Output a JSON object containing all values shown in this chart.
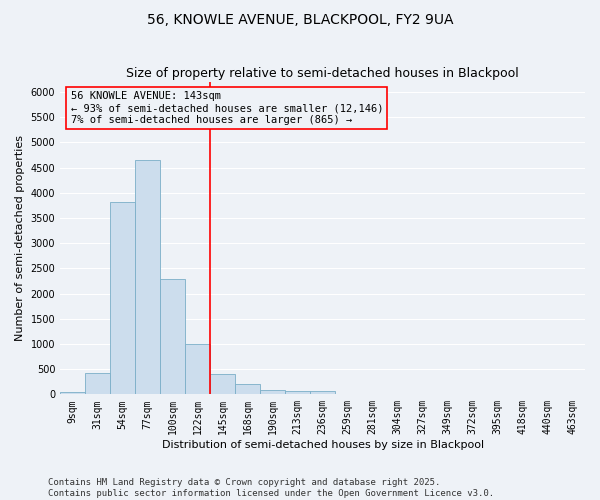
{
  "title1": "56, KNOWLE AVENUE, BLACKPOOL, FY2 9UA",
  "title2": "Size of property relative to semi-detached houses in Blackpool",
  "xlabel": "Distribution of semi-detached houses by size in Blackpool",
  "ylabel": "Number of semi-detached properties",
  "categories": [
    "9sqm",
    "31sqm",
    "54sqm",
    "77sqm",
    "100sqm",
    "122sqm",
    "145sqm",
    "168sqm",
    "190sqm",
    "213sqm",
    "236sqm",
    "259sqm",
    "281sqm",
    "304sqm",
    "327sqm",
    "349sqm",
    "372sqm",
    "395sqm",
    "418sqm",
    "440sqm",
    "463sqm"
  ],
  "values": [
    50,
    430,
    3820,
    4650,
    2290,
    1000,
    410,
    200,
    90,
    70,
    70,
    0,
    0,
    0,
    0,
    0,
    0,
    0,
    0,
    0,
    0
  ],
  "bar_color": "#ccdded",
  "bar_edge_color": "#7aaec8",
  "vline_index": 5.5,
  "annotation_line1": "56 KNOWLE AVENUE: 143sqm",
  "annotation_line2": "← 93% of semi-detached houses are smaller (12,146)",
  "annotation_line3": "7% of semi-detached houses are larger (865) →",
  "ylim": [
    0,
    6200
  ],
  "yticks": [
    0,
    500,
    1000,
    1500,
    2000,
    2500,
    3000,
    3500,
    4000,
    4500,
    5000,
    5500,
    6000
  ],
  "footnote1": "Contains HM Land Registry data © Crown copyright and database right 2025.",
  "footnote2": "Contains public sector information licensed under the Open Government Licence v3.0.",
  "bg_color": "#eef2f7",
  "grid_color": "#ffffff",
  "title_fontsize": 10,
  "subtitle_fontsize": 9,
  "axis_label_fontsize": 8,
  "tick_fontsize": 7,
  "annotation_fontsize": 7.5,
  "footnote_fontsize": 6.5
}
